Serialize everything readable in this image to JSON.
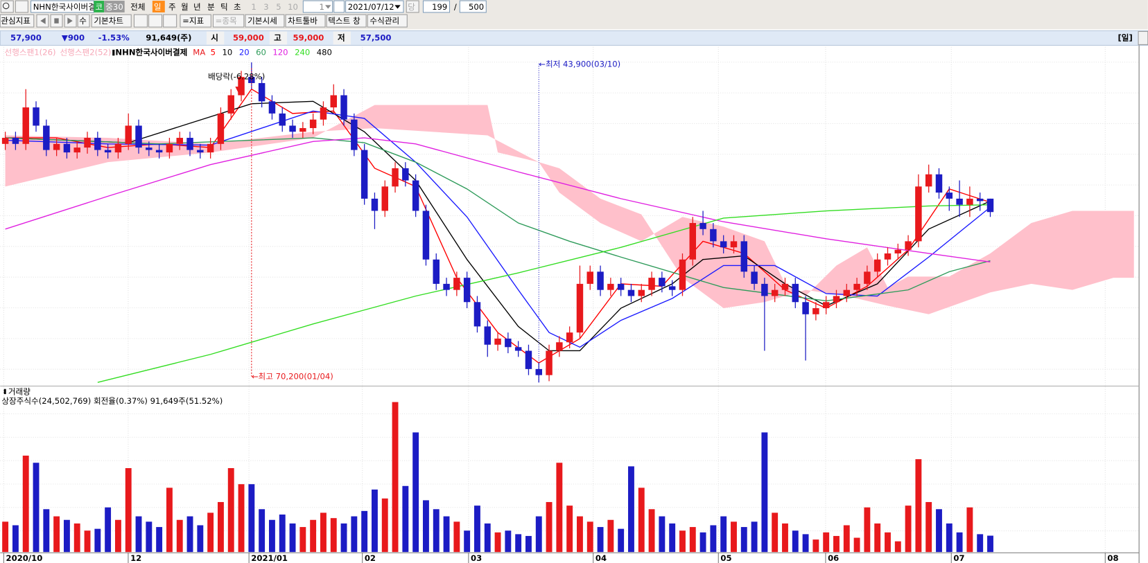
{
  "toolbar": {
    "row1": [
      "NHN한국사이버결",
      "코",
      "중30",
      "전체",
      "일",
      "주",
      "월",
      "년",
      "분",
      "틱",
      "초",
      "1",
      "3",
      "5",
      "10",
      "1",
      "2021/07/12",
      "당",
      "199",
      "/",
      "500"
    ],
    "row2": [
      "관심지표",
      "수",
      "기본차트",
      "=지표",
      "=종목",
      "기본시세",
      "차트툴바",
      "텍스트 창",
      "수식관리"
    ]
  },
  "info": {
    "price": "57,900",
    "change": "▼900",
    "rate": "-1.53%",
    "volume": "91,649(주)",
    "open_label": "시",
    "open": "59,000",
    "high_label": "고",
    "high": "59,000",
    "low_label": "저",
    "low": "57,500",
    "period": "[일]"
  },
  "chart_data": [
    {
      "type": "candlestick",
      "title": "NHN한국사이버결제",
      "up_color": "#e8191c",
      "down_color": "#1c1cc4",
      "xlim": [
        -0.5,
        110.5
      ],
      "ylim": [
        43300,
        71000
      ],
      "xticks": [
        {
          "value": -0.15,
          "label": "2020/10"
        },
        {
          "value": 11.98,
          "label": "12"
        },
        {
          "value": 23.75,
          "label": "2021/01"
        },
        {
          "value": 34.8,
          "label": "02"
        },
        {
          "value": 45.15,
          "label": "03"
        },
        {
          "value": 57.3,
          "label": "04"
        },
        {
          "value": 69.5,
          "label": "05"
        },
        {
          "value": 79.95,
          "label": "06"
        },
        {
          "value": 92.2,
          "label": "07"
        },
        {
          "value": 107.2,
          "label": "08"
        }
      ],
      "x": [
        0,
        1,
        2,
        3,
        4,
        5,
        6,
        7,
        8,
        9,
        10,
        11,
        12,
        13,
        14,
        15,
        16,
        17,
        18,
        19,
        20,
        21,
        22,
        23,
        24,
        25,
        26,
        27,
        28,
        29,
        30,
        31,
        32,
        33,
        34,
        35,
        36,
        37,
        38,
        39,
        40,
        41,
        42,
        43,
        44,
        45,
        46,
        47,
        48,
        49,
        50,
        51,
        52,
        53,
        54,
        55,
        56,
        57,
        58,
        59,
        60,
        61,
        62,
        63,
        64,
        65,
        66,
        67,
        68,
        69,
        70,
        71,
        72,
        73,
        74,
        75,
        76,
        77,
        78,
        79,
        80,
        81,
        82,
        83,
        84,
        85,
        86,
        87,
        88,
        89,
        90,
        91,
        92,
        93,
        94,
        95,
        96
      ],
      "open": [
        63500,
        64000,
        63500,
        66500,
        65000,
        63000,
        63500,
        62800,
        63200,
        64000,
        63000,
        62800,
        63500,
        65000,
        63200,
        63000,
        62800,
        63500,
        64000,
        63000,
        62800,
        63500,
        66000,
        67500,
        69000,
        68500,
        67000,
        66000,
        65000,
        64500,
        64800,
        65500,
        66500,
        67500,
        65500,
        63000,
        59000,
        58000,
        60000,
        61500,
        60500,
        58000,
        54000,
        52000,
        51500,
        52500,
        50500,
        48500,
        47000,
        47500,
        46800,
        46500,
        45000,
        44500,
        46500,
        47200,
        48000,
        52000,
        53000,
        51500,
        52000,
        51500,
        51000,
        51500,
        52500,
        51800,
        51500,
        54000,
        57000,
        56500,
        55500,
        55000,
        55500,
        53000,
        52000,
        51000,
        51500,
        52000,
        50500,
        49500,
        50000,
        50500,
        51000,
        51500,
        52000,
        53000,
        54000,
        54500,
        54800,
        55500,
        60000,
        61000,
        59500,
        59000,
        58500,
        59000,
        59000
      ],
      "high": [
        64500,
        64500,
        68000,
        67000,
        65500,
        64000,
        64000,
        63700,
        64500,
        64500,
        63500,
        64000,
        66000,
        65500,
        63700,
        63500,
        64000,
        64500,
        64500,
        63500,
        64000,
        66500,
        68000,
        69500,
        70200,
        69000,
        67500,
        66500,
        65500,
        65300,
        66000,
        67000,
        68400,
        68000,
        66000,
        63500,
        59500,
        60500,
        62000,
        62000,
        61000,
        58500,
        54500,
        52500,
        53000,
        53000,
        51000,
        49000,
        48000,
        48000,
        47300,
        47000,
        45500,
        47000,
        47700,
        48500,
        53500,
        53500,
        53500,
        52500,
        52500,
        52000,
        52000,
        53000,
        53000,
        52300,
        54500,
        57500,
        58000,
        57000,
        56000,
        56000,
        56000,
        53500,
        52500,
        52000,
        52500,
        52500,
        51000,
        50500,
        51000,
        51500,
        52000,
        52500,
        53500,
        54500,
        55000,
        55300,
        56000,
        61000,
        61800,
        61500,
        60000,
        60500,
        60000,
        59500,
        59000
      ],
      "low": [
        63000,
        63000,
        63000,
        64500,
        62500,
        62500,
        62300,
        62300,
        62700,
        62500,
        62300,
        62300,
        63000,
        62700,
        62500,
        62300,
        62300,
        63000,
        62500,
        62300,
        62300,
        63000,
        65500,
        67000,
        68000,
        66500,
        65500,
        64500,
        64000,
        64000,
        64300,
        65000,
        66000,
        65000,
        62500,
        58500,
        56500,
        57500,
        59500,
        60000,
        57500,
        53500,
        51500,
        51000,
        51000,
        50000,
        48000,
        46000,
        46500,
        46300,
        46000,
        44500,
        43900,
        44000,
        46000,
        46700,
        47500,
        51500,
        51000,
        51000,
        51000,
        50500,
        50500,
        51000,
        51300,
        51000,
        51000,
        53500,
        56000,
        55000,
        54500,
        54500,
        52500,
        51500,
        46500,
        50500,
        51000,
        50000,
        45700,
        49000,
        49500,
        50000,
        50500,
        51000,
        51500,
        52500,
        53500,
        54000,
        54300,
        55000,
        59500,
        59000,
        58000,
        57500,
        57500,
        58000,
        57500
      ],
      "close": [
        64000,
        63500,
        66500,
        65000,
        63000,
        63500,
        62800,
        63200,
        64000,
        63000,
        62800,
        63500,
        65000,
        63200,
        63000,
        62800,
        63500,
        64000,
        63000,
        62800,
        63500,
        66000,
        67500,
        69000,
        68500,
        67000,
        66000,
        65000,
        64500,
        64800,
        65500,
        66500,
        67500,
        65500,
        63000,
        59000,
        58000,
        60000,
        61500,
        60500,
        58000,
        54000,
        52000,
        51500,
        52500,
        50500,
        48500,
        47000,
        47500,
        46800,
        46500,
        45000,
        44500,
        46500,
        47200,
        48000,
        52000,
        53000,
        51500,
        52000,
        51500,
        51000,
        51500,
        52500,
        51800,
        51500,
        54000,
        57000,
        56500,
        55500,
        55000,
        55500,
        53000,
        52000,
        51000,
        51500,
        52000,
        50500,
        49500,
        50000,
        50500,
        51000,
        51500,
        52000,
        53000,
        54000,
        54500,
        54800,
        55500,
        60000,
        61000,
        59500,
        59000,
        58500,
        59000,
        58800,
        57900
      ],
      "ma_label": "MA",
      "series": [
        {
          "name": "5",
          "color": "#ff0000",
          "x": [
            0,
            5,
            10,
            15,
            20,
            24,
            28,
            32,
            36,
            40,
            44,
            48,
            52,
            56,
            60,
            64,
            68,
            72,
            76,
            80,
            84,
            88,
            92,
            96
          ],
          "values": [
            64000,
            64000,
            63200,
            63500,
            63200,
            68000,
            66000,
            66200,
            61500,
            60000,
            52500,
            48000,
            45500,
            47500,
            52000,
            51800,
            55500,
            54500,
            51500,
            50000,
            51800,
            54800,
            59800,
            58700
          ]
        },
        {
          "name": "10",
          "color": "#000000",
          "x": [
            0,
            12,
            24,
            30,
            35,
            40,
            45,
            50,
            53,
            56,
            60,
            65,
            68,
            72,
            76,
            80,
            85,
            90,
            96
          ],
          "values": [
            64000,
            63600,
            66800,
            67000,
            64500,
            60500,
            54000,
            48500,
            46500,
            46500,
            50000,
            52000,
            54000,
            54300,
            52000,
            50200,
            52000,
            56500,
            58800
          ]
        },
        {
          "name": "20",
          "color": "#1a1aff",
          "x": [
            0,
            10,
            20,
            30,
            35,
            40,
            45,
            50,
            53,
            56,
            60,
            65,
            70,
            75,
            80,
            85,
            90,
            96
          ],
          "values": [
            63800,
            63500,
            63400,
            66200,
            65600,
            62000,
            57500,
            51500,
            48000,
            46800,
            49000,
            50800,
            53500,
            53500,
            51200,
            51000,
            54200,
            58300
          ]
        },
        {
          "name": "60",
          "color": "#2e9b5a",
          "x": [
            0,
            15,
            30,
            35,
            40,
            45,
            50,
            55,
            60,
            70,
            80,
            88,
            92,
            96
          ],
          "values": [
            64000,
            63500,
            64000,
            63600,
            62000,
            59800,
            57000,
            55500,
            54200,
            51700,
            50600,
            51500,
            53000,
            53900
          ]
        },
        {
          "name": "120",
          "color": "#e020e0",
          "x": [
            0,
            10,
            20,
            30,
            35,
            40,
            50,
            60,
            70,
            80,
            90,
            96
          ],
          "values": [
            56500,
            59200,
            61800,
            63700,
            64000,
            63500,
            61200,
            59000,
            57100,
            55700,
            54500,
            53800
          ]
        },
        {
          "name": "240",
          "color": "#33dd22",
          "x": [
            9,
            20,
            30,
            40,
            50,
            60,
            70,
            80,
            90,
            96
          ],
          "values": [
            43900,
            46200,
            48700,
            51000,
            52900,
            55000,
            57400,
            58000,
            58400,
            58500
          ]
        },
        {
          "name": "480",
          "color": "#000000",
          "x": [],
          "values": []
        }
      ],
      "cloud": {
        "color": "#ffc0cb",
        "series": [
          {
            "name": "선행스팬1(26)",
            "color": "#f7a8b8",
            "x": [
              0,
              10,
              20,
              30,
              36,
              47,
              48,
              52,
              54,
              58,
              62,
              66,
              70,
              74,
              76,
              78,
              81,
              84,
              86,
              88,
              92,
              96,
              100,
              104,
              108,
              110
            ],
            "values": [
              60000,
              62000,
              62800,
              64000,
              66700,
              66700,
              62800,
              62000,
              59500,
              57000,
              55500,
              57500,
              56700,
              55500,
              52000,
              51000,
              53500,
              55000,
              51700,
              52600,
              52600,
              54500,
              57000,
              58000,
              58000,
              58000
            ]
          },
          {
            "name": "선행스팬2(52)",
            "color": "#f7a8b8",
            "x": [
              0,
              10,
              20,
              30,
              36,
              47,
              52,
              54,
              58,
              62,
              66,
              70,
              74,
              78,
              82,
              86,
              90,
              96,
              100,
              104,
              108,
              110
            ],
            "values": [
              64200,
              64000,
              63500,
              64500,
              64800,
              64200,
              62000,
              61500,
              59000,
              57700,
              52500,
              50000,
              50500,
              51500,
              51000,
              50200,
              49500,
              51300,
              52000,
              51500,
              52500,
              52500
            ]
          }
        ]
      },
      "annotations": [
        "배당락(-6.28%)",
        "←최고 70,200(01/04)",
        "←최저 43,900(03/10)"
      ]
    },
    {
      "type": "bar",
      "title": "거래량",
      "subtitle": "상장주식수(24,502,769) 회전율(0.37%) 91,649주(51.52%)",
      "ylim": [
        0,
        860000
      ],
      "values": [
        170000,
        150000,
        540000,
        500000,
        240000,
        200000,
        180000,
        160000,
        120000,
        130000,
        250000,
        180000,
        470000,
        200000,
        170000,
        140000,
        360000,
        180000,
        200000,
        150000,
        220000,
        280000,
        470000,
        380000,
        380000,
        240000,
        180000,
        210000,
        160000,
        140000,
        180000,
        220000,
        190000,
        160000,
        200000,
        230000,
        350000,
        300000,
        840000,
        370000,
        670000,
        290000,
        240000,
        200000,
        170000,
        120000,
        260000,
        160000,
        110000,
        120000,
        100000,
        90000,
        200000,
        280000,
        500000,
        260000,
        200000,
        170000,
        140000,
        180000,
        130000,
        480000,
        360000,
        240000,
        200000,
        160000,
        120000,
        140000,
        110000,
        150000,
        200000,
        170000,
        140000,
        170000,
        670000,
        220000,
        160000,
        120000,
        100000,
        70000,
        110000,
        90000,
        150000,
        80000,
        250000,
        160000,
        110000,
        60000,
        260000,
        520000,
        280000,
        240000,
        160000,
        110000,
        250000,
        100000,
        91649
      ]
    }
  ]
}
